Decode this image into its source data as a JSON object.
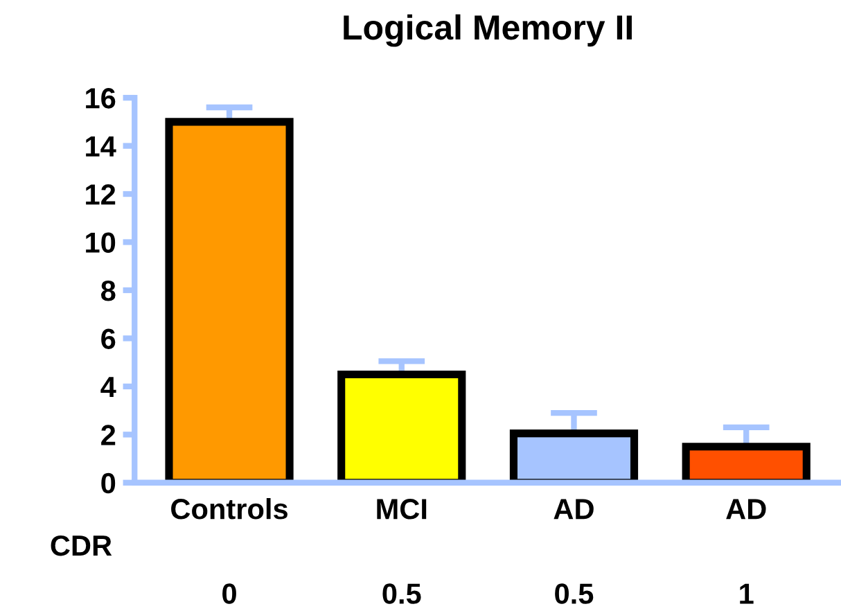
{
  "chart_data": {
    "type": "bar",
    "title": "Logical Memory II",
    "categories": [
      "Controls",
      "MCI",
      "AD",
      "AD"
    ],
    "values": [
      15.0,
      4.5,
      2.05,
      1.5
    ],
    "errors": [
      0.6,
      0.55,
      0.85,
      0.8
    ],
    "colors": [
      "#ff9900",
      "#ffff00",
      "#a6c4ff",
      "#ff5000"
    ],
    "ylim": [
      0,
      16
    ],
    "yticks": [
      0,
      2,
      4,
      6,
      8,
      10,
      12,
      14,
      16
    ],
    "annotations": [
      "CDR",
      "0",
      "0.5",
      "0.5",
      "1"
    ],
    "grid": false,
    "legend": false
  }
}
